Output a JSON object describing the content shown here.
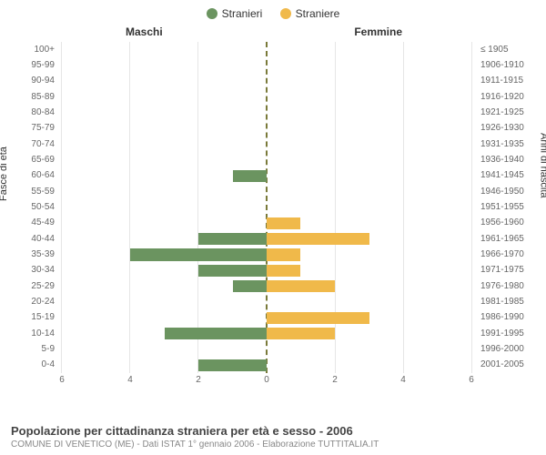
{
  "legend": {
    "male": {
      "label": "Stranieri",
      "color": "#6b9460"
    },
    "female": {
      "label": "Straniere",
      "color": "#f0b94a"
    }
  },
  "columns": {
    "left": "Maschi",
    "right": "Femmine"
  },
  "axis": {
    "left_title": "Fasce di età",
    "right_title": "Anni di nascita",
    "xlim": 6,
    "xticks": [
      6,
      4,
      2,
      0,
      2,
      4,
      6
    ]
  },
  "styling": {
    "background": "#ffffff",
    "grid_color": "#e6e6e6",
    "center_dash_color": "#7a7a3a",
    "label_color": "#666666",
    "header_color": "#333333",
    "bar_height_pct": 76,
    "font_family": "Arial",
    "tick_fontsize": 10,
    "header_fontsize": 12
  },
  "rows": [
    {
      "age": "100+",
      "birth": "≤ 1905",
      "m": 0,
      "f": 0
    },
    {
      "age": "95-99",
      "birth": "1906-1910",
      "m": 0,
      "f": 0
    },
    {
      "age": "90-94",
      "birth": "1911-1915",
      "m": 0,
      "f": 0
    },
    {
      "age": "85-89",
      "birth": "1916-1920",
      "m": 0,
      "f": 0
    },
    {
      "age": "80-84",
      "birth": "1921-1925",
      "m": 0,
      "f": 0
    },
    {
      "age": "75-79",
      "birth": "1926-1930",
      "m": 0,
      "f": 0
    },
    {
      "age": "70-74",
      "birth": "1931-1935",
      "m": 0,
      "f": 0
    },
    {
      "age": "65-69",
      "birth": "1936-1940",
      "m": 0,
      "f": 0
    },
    {
      "age": "60-64",
      "birth": "1941-1945",
      "m": 1,
      "f": 0
    },
    {
      "age": "55-59",
      "birth": "1946-1950",
      "m": 0,
      "f": 0
    },
    {
      "age": "50-54",
      "birth": "1951-1955",
      "m": 0,
      "f": 0
    },
    {
      "age": "45-49",
      "birth": "1956-1960",
      "m": 0,
      "f": 1
    },
    {
      "age": "40-44",
      "birth": "1961-1965",
      "m": 2,
      "f": 3
    },
    {
      "age": "35-39",
      "birth": "1966-1970",
      "m": 4,
      "f": 1
    },
    {
      "age": "30-34",
      "birth": "1971-1975",
      "m": 2,
      "f": 1
    },
    {
      "age": "25-29",
      "birth": "1976-1980",
      "m": 1,
      "f": 2
    },
    {
      "age": "20-24",
      "birth": "1981-1985",
      "m": 0,
      "f": 0
    },
    {
      "age": "15-19",
      "birth": "1986-1990",
      "m": 0,
      "f": 3
    },
    {
      "age": "10-14",
      "birth": "1991-1995",
      "m": 3,
      "f": 2
    },
    {
      "age": "5-9",
      "birth": "1996-2000",
      "m": 0,
      "f": 0
    },
    {
      "age": "0-4",
      "birth": "2001-2005",
      "m": 2,
      "f": 0
    }
  ],
  "footer": {
    "title": "Popolazione per cittadinanza straniera per età e sesso - 2006",
    "subtitle": "COMUNE DI VENETICO (ME) - Dati ISTAT 1° gennaio 2006 - Elaborazione TUTTITALIA.IT"
  }
}
